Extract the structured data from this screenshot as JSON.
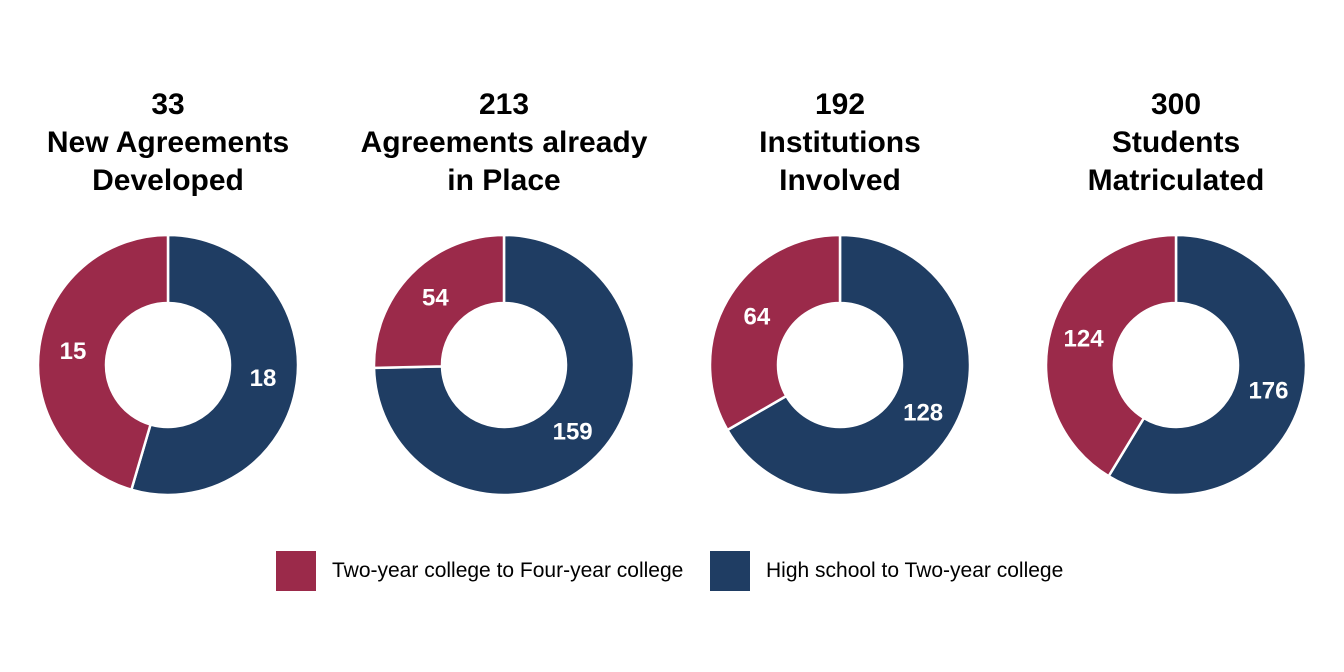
{
  "colors": {
    "two_to_four": "#9b2a4a",
    "hs_to_two": "#1f3d63"
  },
  "legend": [
    {
      "label": "Two-year college to Four-year college",
      "color": "#9b2a4a"
    },
    {
      "label": "High school to Two-year college",
      "color": "#1f3d63"
    }
  ],
  "chart_data": [
    {
      "type": "pie",
      "title_total": "33",
      "title_line1": "New Agreements",
      "title_line2": "Developed",
      "slices": [
        {
          "name": "High school to Two-year college",
          "value": 18,
          "label": "18"
        },
        {
          "name": "Two-year college to Four-year college",
          "value": 15,
          "label": "15"
        }
      ]
    },
    {
      "type": "pie",
      "title_total": "213",
      "title_line1": "Agreements already",
      "title_line2": "in Place",
      "slices": [
        {
          "name": "High school to Two-year college",
          "value": 159,
          "label": "159"
        },
        {
          "name": "Two-year college to Four-year college",
          "value": 54,
          "label": "54"
        }
      ]
    },
    {
      "type": "pie",
      "title_total": "192",
      "title_line1": "Institutions",
      "title_line2": "Involved",
      "slices": [
        {
          "name": "High school to Two-year college",
          "value": 128,
          "label": "128"
        },
        {
          "name": "Two-year college to Four-year college",
          "value": 64,
          "label": "64"
        }
      ]
    },
    {
      "type": "pie",
      "title_total": "300",
      "title_line1": "Students",
      "title_line2": "Matriculated",
      "slices": [
        {
          "name": "High school to Two-year college",
          "value": 176,
          "label": "176"
        },
        {
          "name": "Two-year college to Four-year college",
          "value": 124,
          "label": "124"
        }
      ]
    }
  ]
}
